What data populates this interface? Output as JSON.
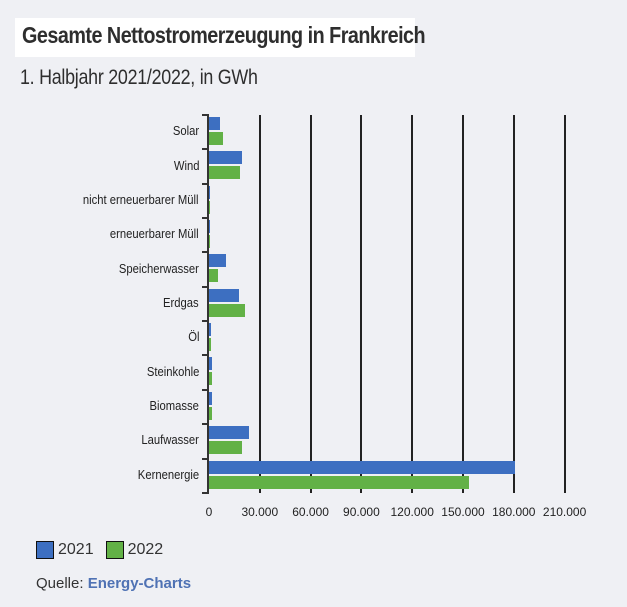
{
  "header": {
    "title": "Gesamte Nettostromerzeugung in Frankreich",
    "subtitle": "1. Halbjahr 2021/2022, in GWh"
  },
  "legend": [
    {
      "label": "2021",
      "color": "#3d6fc1"
    },
    {
      "label": "2022",
      "color": "#62b146"
    }
  ],
  "source": {
    "prefix": "Quelle:",
    "link": "Energy-Charts"
  },
  "x_ticks": [
    "0",
    "30.000",
    "60.000",
    "90.000",
    "120.000",
    "150.000",
    "180.000",
    "210.000"
  ],
  "chart_data": {
    "type": "bar",
    "orientation": "horizontal",
    "title": "Gesamte Nettostromerzeugung in Frankreich",
    "subtitle": "1. Halbjahr 2021/2022, in GWh",
    "xlabel": "",
    "ylabel": "",
    "xlim": [
      0,
      210000
    ],
    "x_ticks": [
      0,
      30000,
      60000,
      90000,
      120000,
      150000,
      180000,
      210000
    ],
    "grid": "vertical",
    "legend_position": "bottom-left",
    "categories": [
      "Solar",
      "Wind",
      "nicht erneuerbarer Müll",
      "erneuerbarer Müll",
      "Speicherwasser",
      "Erdgas",
      "Öl",
      "Steinkohle",
      "Biomasse",
      "Laufwasser",
      "Kernenergie"
    ],
    "series": [
      {
        "name": "2021",
        "color": "#3d6fc1",
        "values": [
          6500,
          19500,
          700,
          700,
          10000,
          17700,
          1200,
          1800,
          1600,
          23600,
          180700
        ]
      },
      {
        "name": "2022",
        "color": "#62b146",
        "values": [
          8300,
          18300,
          600,
          600,
          5300,
          21300,
          1000,
          1900,
          1500,
          19500,
          153500
        ]
      }
    ]
  }
}
